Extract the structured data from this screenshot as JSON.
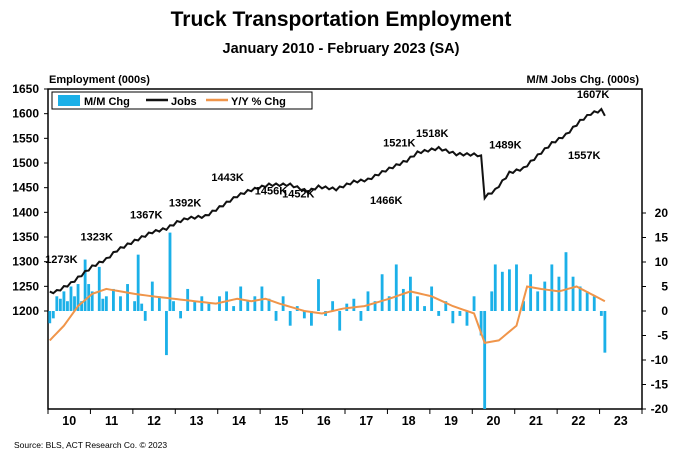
{
  "header": {
    "title": "Truck Transportation Employment",
    "subtitle": "January 2010 - February 2023 (SA)",
    "ylabel_left": "Employment (000s)",
    "ylabel_right": "M/M Jobs Chg. (000s)",
    "source": "Source: BLS, ACT Research Co. © 2023"
  },
  "chart_data": {
    "type": "bar+line",
    "title": "Truck Transportation Employment",
    "subtitle": "January 2010 - February 2023 (SA)",
    "ylabel": "Employment (000s)",
    "y2label": "M/M Jobs Chg. (000s)",
    "ylim": [
      1200,
      1650
    ],
    "yticks": [
      1200,
      1250,
      1300,
      1350,
      1400,
      1450,
      1500,
      1550,
      1600,
      1650
    ],
    "y2lim": [
      -20,
      20
    ],
    "y2ticks": [
      -20,
      -15,
      -10,
      -5,
      0,
      5,
      10,
      15,
      20
    ],
    "xtick_labels": [
      "10",
      "11",
      "12",
      "13",
      "14",
      "15",
      "16",
      "17",
      "18",
      "19",
      "20",
      "21",
      "22",
      "23"
    ],
    "grid": false,
    "legend": {
      "position": "top-left",
      "entries": [
        "M/M Chg",
        "Jobs",
        "Y/Y % Chg"
      ]
    },
    "colors": {
      "mm": "#1BB0E8",
      "jobs": "#111111",
      "yy": "#F0954A"
    },
    "series": [
      {
        "name": "Jobs",
        "axis": "left",
        "anchors": [
          [
            "2010-01",
            1237
          ],
          [
            "2010-03",
            1240
          ],
          [
            "2010-07",
            1256
          ],
          [
            "2010-10",
            1273
          ],
          [
            "2011-01",
            1290
          ],
          [
            "2011-05",
            1305
          ],
          [
            "2011-08",
            1323
          ],
          [
            "2012-01",
            1342
          ],
          [
            "2012-06",
            1360
          ],
          [
            "2012-10",
            1367
          ],
          [
            "2013-01",
            1380
          ],
          [
            "2013-04",
            1388
          ],
          [
            "2013-09",
            1392
          ],
          [
            "2014-01",
            1410
          ],
          [
            "2014-06",
            1433
          ],
          [
            "2014-09",
            1443
          ],
          [
            "2015-03",
            1456
          ],
          [
            "2015-09",
            1456
          ],
          [
            "2016-02",
            1442
          ],
          [
            "2016-05",
            1452
          ],
          [
            "2016-10",
            1447
          ],
          [
            "2017-03",
            1462
          ],
          [
            "2017-07",
            1466
          ],
          [
            "2017-12",
            1485
          ],
          [
            "2018-06",
            1505
          ],
          [
            "2018-09",
            1521
          ],
          [
            "2019-03",
            1530
          ],
          [
            "2019-08",
            1518
          ],
          [
            "2020-01",
            1517
          ],
          [
            "2020-02",
            1516
          ],
          [
            "2020-03",
            1513
          ],
          [
            "2020-04",
            1431
          ],
          [
            "2020-07",
            1445
          ],
          [
            "2020-11",
            1480
          ],
          [
            "2021-03",
            1489
          ],
          [
            "2021-07",
            1515
          ],
          [
            "2021-11",
            1540
          ],
          [
            "2022-03",
            1557
          ],
          [
            "2022-07",
            1585
          ],
          [
            "2022-10",
            1600
          ],
          [
            "2023-01",
            1607
          ],
          [
            "2023-02",
            1598
          ]
        ]
      },
      {
        "name": "Y/Y % Chg",
        "axis": "right",
        "anchors": [
          [
            "2010-01",
            -6
          ],
          [
            "2010-05",
            -3
          ],
          [
            "2010-09",
            1
          ],
          [
            "2011-01",
            3.5
          ],
          [
            "2011-05",
            4.5
          ],
          [
            "2011-09",
            4
          ],
          [
            "2012-01",
            3.5
          ],
          [
            "2012-06",
            3
          ],
          [
            "2012-12",
            2.5
          ],
          [
            "2013-06",
            2
          ],
          [
            "2013-12",
            1.5
          ],
          [
            "2014-06",
            2.5
          ],
          [
            "2014-10",
            2
          ],
          [
            "2015-02",
            2.5
          ],
          [
            "2015-06",
            1.5
          ],
          [
            "2016-01",
            0
          ],
          [
            "2016-06",
            -0.5
          ],
          [
            "2016-12",
            0.5
          ],
          [
            "2017-06",
            1
          ],
          [
            "2018-01",
            2.5
          ],
          [
            "2018-07",
            4
          ],
          [
            "2019-01",
            3
          ],
          [
            "2019-07",
            1
          ],
          [
            "2020-01",
            -0.5
          ],
          [
            "2020-04",
            -6.5
          ],
          [
            "2020-08",
            -6
          ],
          [
            "2021-01",
            -3
          ],
          [
            "2021-04",
            5
          ],
          [
            "2021-08",
            4.5
          ],
          [
            "2022-01",
            4
          ],
          [
            "2022-06",
            5
          ],
          [
            "2022-10",
            3.5
          ],
          [
            "2023-02",
            2
          ]
        ]
      },
      {
        "name": "M/M Chg",
        "axis": "right",
        "type": "bar",
        "anchors": [
          [
            "2010-01",
            -2.5
          ],
          [
            "2010-02",
            -1.5
          ],
          [
            "2010-03",
            3
          ],
          [
            "2010-04",
            2.5
          ],
          [
            "2010-05",
            4
          ],
          [
            "2010-06",
            2
          ],
          [
            "2010-07",
            5
          ],
          [
            "2010-08",
            3
          ],
          [
            "2010-09",
            5.5
          ],
          [
            "2010-10",
            2
          ],
          [
            "2010-11",
            10.5
          ],
          [
            "2010-12",
            5.5
          ],
          [
            "2011-01",
            4
          ],
          [
            "2011-03",
            9
          ],
          [
            "2011-04",
            2.5
          ],
          [
            "2011-05",
            3
          ],
          [
            "2011-07",
            4.5
          ],
          [
            "2011-09",
            3
          ],
          [
            "2011-11",
            5.5
          ],
          [
            "2012-01",
            2
          ],
          [
            "2012-02",
            11.5
          ],
          [
            "2012-03",
            1.5
          ],
          [
            "2012-04",
            -2
          ],
          [
            "2012-06",
            6
          ],
          [
            "2012-08",
            3
          ],
          [
            "2012-10",
            -9
          ],
          [
            "2012-11",
            16
          ],
          [
            "2012-12",
            2
          ],
          [
            "2013-02",
            -1.5
          ],
          [
            "2013-04",
            4.5
          ],
          [
            "2013-06",
            2
          ],
          [
            "2013-08",
            3
          ],
          [
            "2013-10",
            1.5
          ],
          [
            "2014-01",
            3
          ],
          [
            "2014-03",
            4
          ],
          [
            "2014-05",
            1
          ],
          [
            "2014-07",
            5
          ],
          [
            "2014-09",
            2
          ],
          [
            "2014-11",
            3
          ],
          [
            "2015-01",
            5
          ],
          [
            "2015-03",
            2.5
          ],
          [
            "2015-05",
            -2
          ],
          [
            "2015-07",
            3
          ],
          [
            "2015-09",
            -3
          ],
          [
            "2015-11",
            1
          ],
          [
            "2016-01",
            -1.5
          ],
          [
            "2016-03",
            -3
          ],
          [
            "2016-05",
            6.5
          ],
          [
            "2016-07",
            -1
          ],
          [
            "2016-09",
            2
          ],
          [
            "2016-11",
            -4
          ],
          [
            "2017-01",
            1.5
          ],
          [
            "2017-03",
            2.5
          ],
          [
            "2017-05",
            -2
          ],
          [
            "2017-07",
            4
          ],
          [
            "2017-09",
            2
          ],
          [
            "2017-11",
            7.5
          ],
          [
            "2018-01",
            3
          ],
          [
            "2018-03",
            9.5
          ],
          [
            "2018-05",
            4.5
          ],
          [
            "2018-07",
            7
          ],
          [
            "2018-09",
            3
          ],
          [
            "2018-11",
            1
          ],
          [
            "2019-01",
            5
          ],
          [
            "2019-03",
            -1
          ],
          [
            "2019-05",
            2
          ],
          [
            "2019-07",
            -2.5
          ],
          [
            "2019-09",
            -1
          ],
          [
            "2019-11",
            -3
          ],
          [
            "2020-01",
            3
          ],
          [
            "2020-03",
            -5
          ],
          [
            "2020-04",
            -20
          ],
          [
            "2020-06",
            4
          ],
          [
            "2020-07",
            9.5
          ],
          [
            "2020-09",
            8
          ],
          [
            "2020-11",
            8.5
          ],
          [
            "2021-01",
            9.5
          ],
          [
            "2021-03",
            2
          ],
          [
            "2021-05",
            7.5
          ],
          [
            "2021-07",
            4
          ],
          [
            "2021-09",
            6
          ],
          [
            "2021-11",
            9.5
          ],
          [
            "2022-01",
            7
          ],
          [
            "2022-03",
            12
          ],
          [
            "2022-05",
            7
          ],
          [
            "2022-07",
            5
          ],
          [
            "2022-09",
            4
          ],
          [
            "2022-11",
            3
          ],
          [
            "2023-01",
            -1
          ],
          [
            "2023-02",
            -8.5
          ]
        ]
      }
    ],
    "annotations": [
      {
        "text": "1273K",
        "x": "2010-10",
        "y": 1273
      },
      {
        "text": "1323K",
        "x": "2011-08",
        "y": 1323
      },
      {
        "text": "1367K",
        "x": "2012-10",
        "y": 1367
      },
      {
        "text": "1392K",
        "x": "2013-09",
        "y": 1392
      },
      {
        "text": "1443K",
        "x": "2014-09",
        "y": 1443
      },
      {
        "text": "1456K",
        "x": "2015-09",
        "y": 1456
      },
      {
        "text": "1452K",
        "x": "2016-05",
        "y": 1452
      },
      {
        "text": "1466K",
        "x": "2017-07",
        "y": 1466
      },
      {
        "text": "1521K",
        "x": "2018-09",
        "y": 1521
      },
      {
        "text": "1518K",
        "x": "2019-08",
        "y": 1518
      },
      {
        "text": "1489K",
        "x": "2021-03",
        "y": 1489
      },
      {
        "text": "1557K",
        "x": "2022-03",
        "y": 1557
      },
      {
        "text": "1607K",
        "x": "2023-01",
        "y": 1607
      }
    ]
  }
}
